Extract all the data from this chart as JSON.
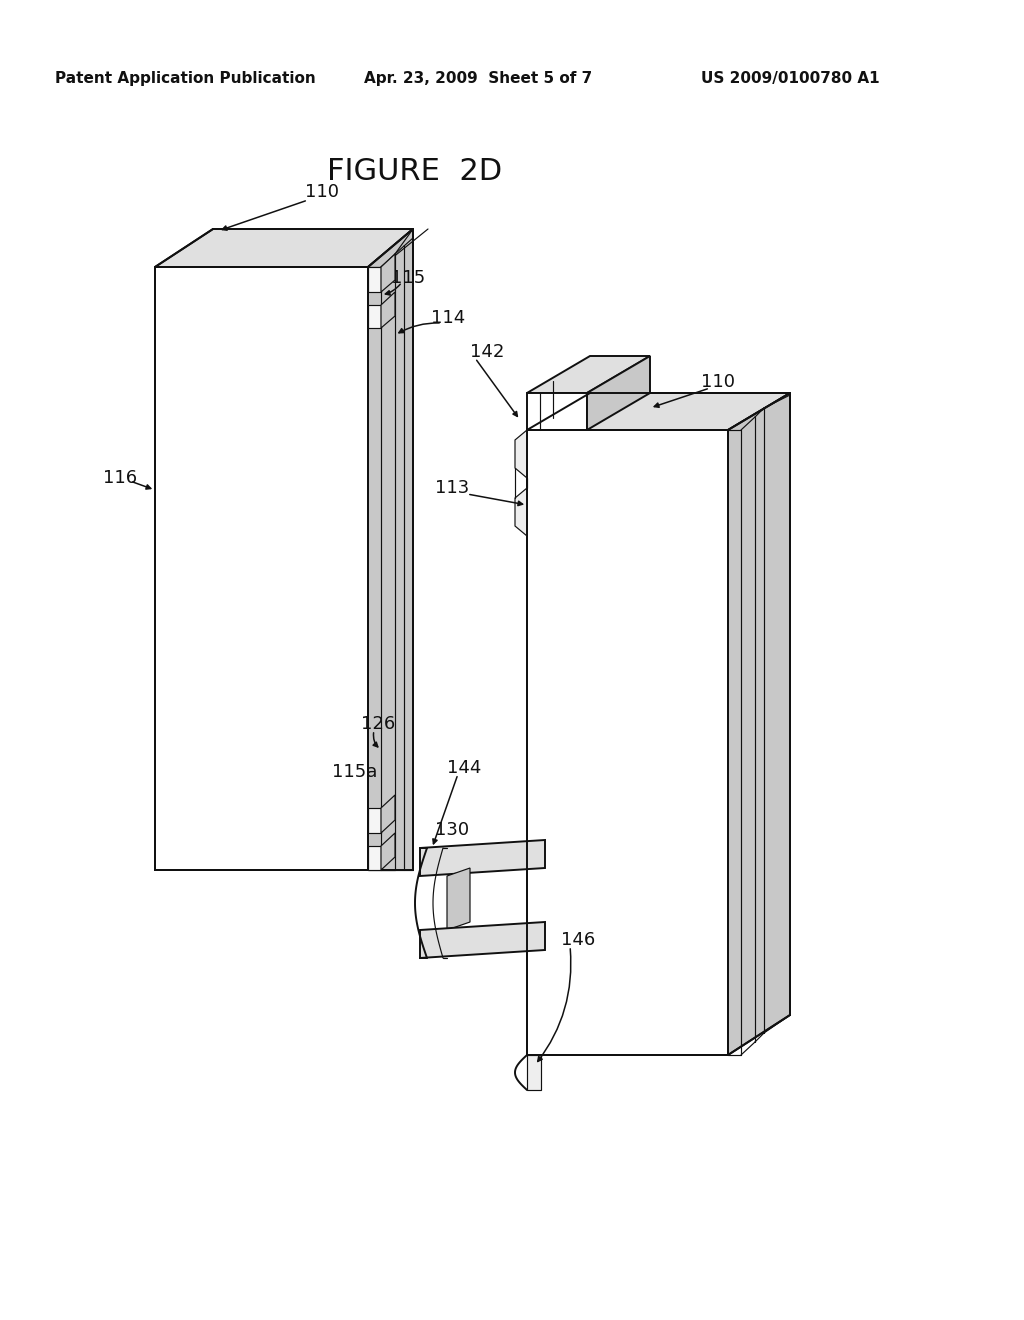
{
  "bg": "#ffffff",
  "lc": "#111111",
  "face_white": "#ffffff",
  "face_light": "#e0e0e0",
  "face_med": "#c8c8c8",
  "lw": 1.4,
  "lwt": 0.85,
  "fs": 13,
  "fs_title": 22,
  "fs_hdr": 11,
  "header_left": "Patent Application Publication",
  "header_mid": "Apr. 23, 2009  Sheet 5 of 7",
  "header_right": "US 2009/0100780 A1",
  "fig_title": "FIGURE  2D"
}
